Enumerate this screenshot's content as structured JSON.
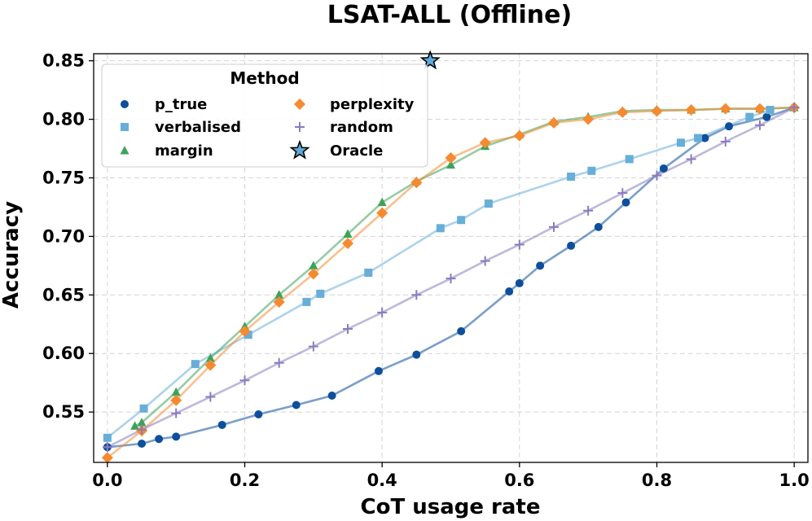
{
  "chart_data": {
    "type": "line",
    "title": "LSAT-ALL (Offline)",
    "xlabel": "CoT usage rate",
    "ylabel": "Accuracy",
    "xlim": [
      -0.02,
      1.02
    ],
    "ylim": [
      0.507,
      0.856
    ],
    "xticks": [
      0.0,
      0.2,
      0.4,
      0.6,
      0.8,
      1.0
    ],
    "xtick_labels": [
      "0.0",
      "0.2",
      "0.4",
      "0.6",
      "0.8",
      "1.0"
    ],
    "yticks": [
      0.55,
      0.6,
      0.65,
      0.7,
      0.75,
      0.8,
      0.85
    ],
    "ytick_labels": [
      "0.55",
      "0.60",
      "0.65",
      "0.70",
      "0.75",
      "0.80",
      "0.85"
    ],
    "grid": true,
    "legend": {
      "title": "Method",
      "placement": "top-left"
    },
    "series": [
      {
        "name": "p_true",
        "marker": "circle",
        "color": "#0d4f9c",
        "x": [
          0.0,
          0.05,
          0.075,
          0.1,
          0.167,
          0.22,
          0.275,
          0.327,
          0.395,
          0.45,
          0.515,
          0.585,
          0.6,
          0.63,
          0.675,
          0.715,
          0.755,
          0.81,
          0.87,
          0.905,
          0.96,
          1.0
        ],
        "y": [
          0.52,
          0.523,
          0.527,
          0.529,
          0.539,
          0.548,
          0.556,
          0.564,
          0.585,
          0.599,
          0.619,
          0.653,
          0.66,
          0.675,
          0.692,
          0.708,
          0.729,
          0.758,
          0.784,
          0.794,
          0.802,
          0.81
        ]
      },
      {
        "name": "verbalised",
        "marker": "square",
        "color": "#67aed8",
        "x": [
          0.0,
          0.053,
          0.128,
          0.205,
          0.29,
          0.31,
          0.38,
          0.485,
          0.515,
          0.555,
          0.675,
          0.705,
          0.76,
          0.835,
          0.86,
          0.935,
          0.965
        ],
        "y": [
          0.528,
          0.553,
          0.591,
          0.616,
          0.644,
          0.651,
          0.669,
          0.707,
          0.714,
          0.728,
          0.751,
          0.756,
          0.766,
          0.78,
          0.784,
          0.802,
          0.808
        ]
      },
      {
        "name": "margin",
        "marker": "triangle",
        "color": "#3ca35a",
        "x": [
          0.04,
          0.05,
          0.1,
          0.15,
          0.2,
          0.25,
          0.3,
          0.35,
          0.4,
          0.45,
          0.5,
          0.55,
          0.6,
          0.65,
          0.7,
          0.75,
          0.8,
          0.85,
          0.9,
          0.95,
          1.0
        ],
        "y": [
          0.538,
          0.541,
          0.567,
          0.596,
          0.623,
          0.65,
          0.675,
          0.702,
          0.729,
          0.747,
          0.761,
          0.777,
          0.787,
          0.798,
          0.802,
          0.807,
          0.808,
          0.808,
          0.809,
          0.809,
          0.81
        ]
      },
      {
        "name": "perplexity",
        "marker": "diamond",
        "color": "#f58a30",
        "x": [
          0.0,
          0.05,
          0.1,
          0.15,
          0.2,
          0.25,
          0.3,
          0.35,
          0.4,
          0.45,
          0.5,
          0.55,
          0.6,
          0.65,
          0.7,
          0.75,
          0.8,
          0.85,
          0.9,
          0.95,
          1.0
        ],
        "y": [
          0.511,
          0.534,
          0.56,
          0.59,
          0.619,
          0.644,
          0.668,
          0.694,
          0.72,
          0.746,
          0.767,
          0.78,
          0.786,
          0.797,
          0.8,
          0.806,
          0.807,
          0.808,
          0.809,
          0.809,
          0.81
        ]
      },
      {
        "name": "random",
        "marker": "plus",
        "color": "#8a7bbf",
        "x": [
          0.0,
          0.05,
          0.1,
          0.15,
          0.2,
          0.25,
          0.3,
          0.35,
          0.4,
          0.45,
          0.5,
          0.55,
          0.6,
          0.65,
          0.7,
          0.75,
          0.8,
          0.85,
          0.9,
          0.95,
          1.0
        ],
        "y": [
          0.52,
          0.535,
          0.549,
          0.563,
          0.577,
          0.592,
          0.606,
          0.621,
          0.635,
          0.65,
          0.664,
          0.679,
          0.693,
          0.708,
          0.722,
          0.737,
          0.752,
          0.766,
          0.781,
          0.795,
          0.81
        ]
      }
    ],
    "oracle": {
      "name": "Oracle",
      "marker": "star",
      "color": "#5ea9d9",
      "x": 0.47,
      "y": 0.85
    }
  }
}
